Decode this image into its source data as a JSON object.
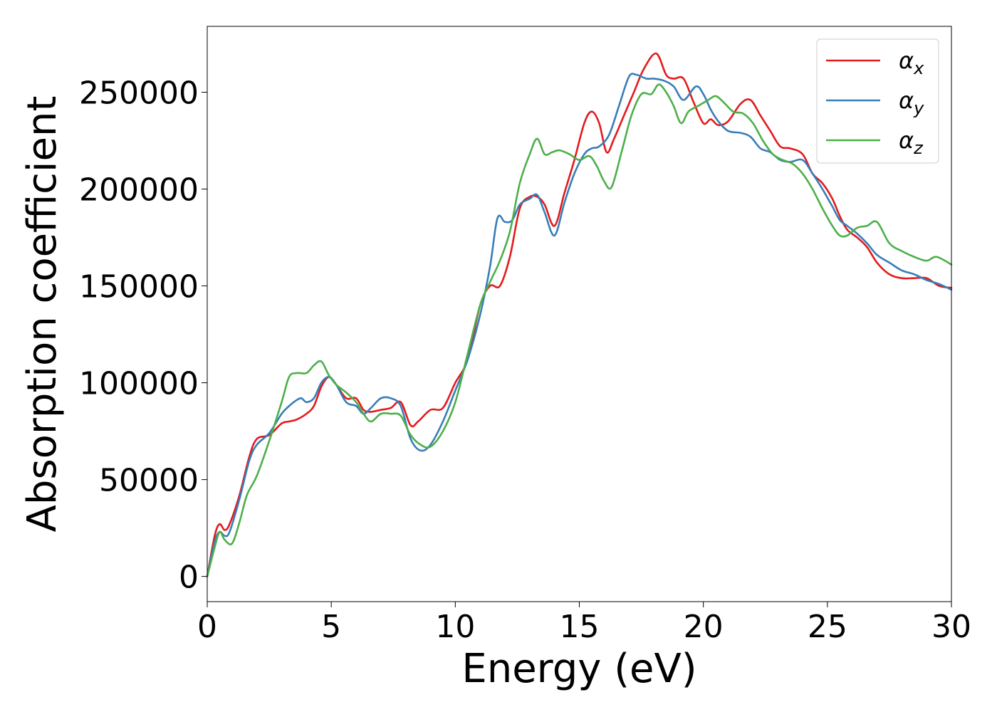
{
  "chart_data": {
    "type": "line",
    "xlabel": "Energy (eV)",
    "ylabel": "Absorption coefficient",
    "xlim": [
      0,
      30
    ],
    "ylim": [
      -13000,
      284000
    ],
    "xticks": [
      0,
      5,
      10,
      15,
      20,
      25,
      30
    ],
    "yticks": [
      0,
      50000,
      100000,
      150000,
      200000,
      250000
    ],
    "xtick_labels": [
      "0",
      "5",
      "10",
      "15",
      "20",
      "25",
      "30"
    ],
    "ytick_labels": [
      "0",
      "50000",
      "100000",
      "150000",
      "200000",
      "250000"
    ],
    "grid": false,
    "legend_position": "top-right",
    "series": [
      {
        "name": "α",
        "subscript": "x",
        "color": "#e41a1c",
        "x": [
          0,
          0.3,
          0.5,
          0.7,
          0.9,
          1.3,
          1.7,
          2.0,
          2.5,
          3.0,
          3.3,
          3.6,
          4.0,
          4.3,
          4.6,
          4.9,
          5.2,
          5.6,
          6.0,
          6.3,
          6.6,
          7.0,
          7.4,
          7.8,
          8.2,
          8.5,
          9.0,
          9.5,
          10.0,
          10.5,
          11.0,
          11.4,
          11.8,
          12.2,
          12.6,
          13.0,
          13.3,
          13.6,
          14.0,
          14.4,
          14.8,
          15.2,
          15.5,
          15.8,
          16.1,
          16.4,
          16.8,
          17.2,
          17.6,
          18.1,
          18.5,
          18.8,
          19.2,
          19.6,
          20.0,
          20.3,
          20.6,
          21.0,
          21.5,
          21.9,
          22.3,
          22.7,
          23.1,
          23.5,
          24.0,
          24.4,
          24.8,
          25.2,
          25.5,
          25.8,
          26.2,
          26.6,
          27.0,
          27.5,
          28.0,
          28.5,
          29.0,
          29.5,
          30.0
        ],
        "y": [
          0,
          21000,
          27000,
          24000,
          27000,
          42000,
          62000,
          71000,
          73000,
          79000,
          80000,
          81000,
          84000,
          88000,
          98000,
          103000,
          99000,
          92000,
          92000,
          86000,
          85000,
          86000,
          87000,
          90000,
          78000,
          80000,
          86000,
          87000,
          100000,
          112000,
          140000,
          150000,
          150000,
          165000,
          190000,
          196000,
          196000,
          192000,
          181000,
          198000,
          215000,
          234000,
          240000,
          234000,
          219000,
          226000,
          238000,
          250000,
          262000,
          270000,
          259000,
          257000,
          257000,
          245000,
          234000,
          236000,
          233000,
          235000,
          244000,
          246000,
          238000,
          230000,
          222000,
          221000,
          218000,
          208000,
          203000,
          195000,
          186000,
          179000,
          175000,
          170000,
          162000,
          156000,
          154000,
          154000,
          154000,
          150000,
          149000
        ]
      },
      {
        "name": "α",
        "subscript": "y",
        "color": "#377eb8",
        "x": [
          0,
          0.3,
          0.5,
          0.7,
          0.9,
          1.3,
          1.7,
          2.0,
          2.5,
          3.0,
          3.3,
          3.6,
          3.8,
          4.0,
          4.3,
          4.6,
          4.9,
          5.2,
          5.6,
          6.0,
          6.3,
          6.6,
          7.0,
          7.4,
          7.8,
          8.2,
          8.6,
          9.0,
          9.5,
          10.0,
          10.5,
          11.0,
          11.4,
          11.7,
          12.0,
          12.3,
          12.6,
          13.0,
          13.3,
          13.6,
          14.0,
          14.4,
          14.8,
          15.2,
          15.5,
          15.8,
          16.2,
          16.6,
          17.0,
          17.3,
          17.7,
          18.0,
          18.4,
          18.8,
          19.2,
          19.7,
          20.0,
          20.3,
          20.6,
          21.0,
          21.5,
          21.9,
          22.3,
          22.7,
          23.1,
          23.5,
          24.0,
          24.4,
          24.8,
          25.2,
          25.5,
          25.8,
          26.2,
          26.6,
          27.0,
          27.5,
          28.0,
          28.5,
          29.0,
          29.5,
          30.0
        ],
        "y": [
          0,
          18000,
          23000,
          21000,
          23000,
          40000,
          60000,
          68000,
          74000,
          84000,
          88000,
          91000,
          92000,
          90000,
          92000,
          100000,
          103000,
          99000,
          90000,
          88000,
          84000,
          87000,
          92000,
          92000,
          88000,
          71000,
          65000,
          68000,
          80000,
          96000,
          112000,
          135000,
          160000,
          185000,
          183000,
          184000,
          192000,
          195000,
          197000,
          188000,
          176000,
          193000,
          208000,
          218000,
          221000,
          222000,
          228000,
          243000,
          258000,
          259000,
          257000,
          257000,
          256000,
          253000,
          246000,
          253000,
          249000,
          241000,
          235000,
          230000,
          229000,
          227000,
          221000,
          219000,
          215000,
          214000,
          215000,
          208000,
          200000,
          191000,
          184000,
          181000,
          177000,
          172000,
          166000,
          162000,
          158000,
          156000,
          153000,
          151000,
          148000
        ]
      },
      {
        "name": "α",
        "subscript": "z",
        "color": "#4daf4a",
        "x": [
          0,
          0.3,
          0.5,
          0.7,
          1.0,
          1.3,
          1.6,
          2.0,
          2.5,
          3.0,
          3.3,
          3.6,
          4.0,
          4.3,
          4.6,
          4.9,
          5.2,
          5.6,
          6.0,
          6.3,
          6.6,
          7.0,
          7.4,
          7.8,
          8.2,
          8.6,
          9.0,
          9.5,
          10.0,
          10.5,
          11.0,
          11.4,
          11.8,
          12.2,
          12.6,
          13.0,
          13.3,
          13.6,
          13.9,
          14.2,
          14.6,
          15.0,
          15.4,
          15.7,
          16.0,
          16.3,
          16.7,
          17.1,
          17.5,
          17.9,
          18.2,
          18.5,
          18.8,
          19.1,
          19.4,
          19.8,
          20.2,
          20.5,
          20.8,
          21.2,
          21.6,
          22.0,
          22.4,
          22.8,
          23.2,
          23.6,
          24.0,
          24.4,
          24.8,
          25.2,
          25.5,
          25.8,
          26.2,
          26.6,
          27.0,
          27.5,
          28.0,
          28.5,
          29.0,
          29.4,
          30.0
        ],
        "y": [
          0,
          15000,
          23000,
          19000,
          17000,
          28000,
          42000,
          52000,
          70000,
          90000,
          103000,
          105000,
          105000,
          109000,
          111000,
          104000,
          99000,
          95000,
          90000,
          84000,
          80000,
          84000,
          84000,
          83000,
          73000,
          68000,
          67000,
          75000,
          90000,
          115000,
          140000,
          152000,
          163000,
          178000,
          203000,
          218000,
          226000,
          218000,
          219000,
          220000,
          218000,
          215000,
          217000,
          212000,
          204000,
          201000,
          219000,
          238000,
          249000,
          249000,
          254000,
          250000,
          243000,
          234000,
          240000,
          243000,
          246000,
          248000,
          245000,
          240000,
          239000,
          234000,
          225000,
          218000,
          215000,
          213000,
          208000,
          200000,
          190000,
          181000,
          176000,
          176000,
          180000,
          181000,
          183000,
          172000,
          168000,
          165000,
          163000,
          165000,
          161000
        ]
      }
    ]
  }
}
